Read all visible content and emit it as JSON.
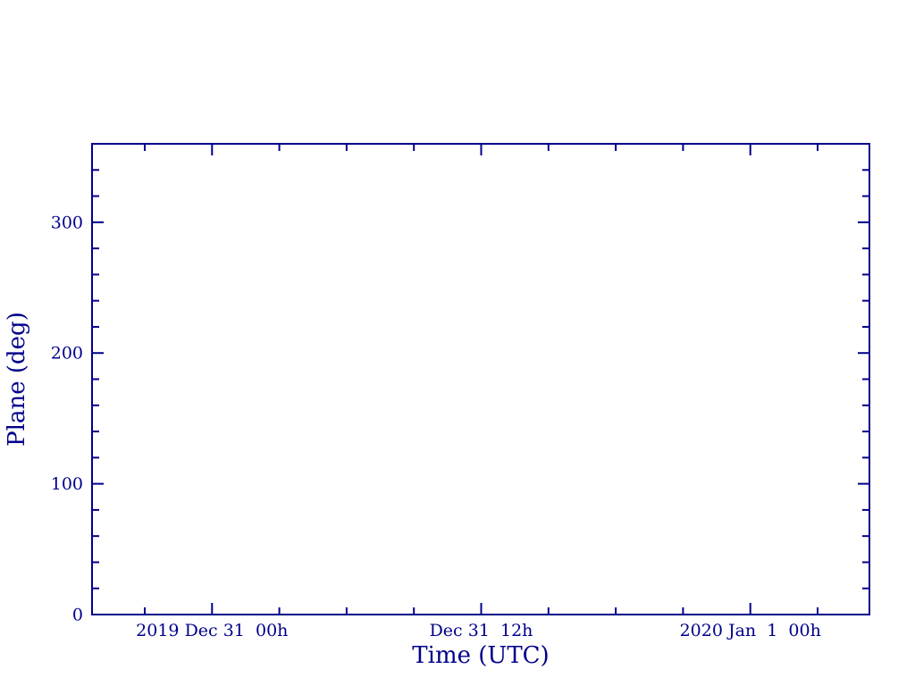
{
  "page": {
    "background_color": "#ffffff",
    "accent_color": "#00008B"
  },
  "chart_data": {
    "type": "line",
    "title": "",
    "xlabel": "Time (UTC)",
    "ylabel": "Plane (deg)",
    "axis_color": "#00008B",
    "background_color": "#ffffff",
    "grid": false,
    "legend": null,
    "series": [],
    "content_note": "empty axes frame, no data points plotted",
    "x_axis": {
      "tick_unit": "hours relative to first labeled tick",
      "range_hours": [
        -5.35,
        29.31
      ],
      "minor_tick_step_hours": 3,
      "ticks_inward": true,
      "major_ticks": [
        {
          "hours": 0,
          "label": "2019 Dec 31  00h"
        },
        {
          "hours": 12,
          "label": "Dec 31  12h"
        },
        {
          "hours": 24,
          "label": "2020 Jan  1  00h"
        }
      ]
    },
    "y_axis": {
      "range_deg": [
        0,
        360
      ],
      "minor_tick_step_deg": 20,
      "major_tick_step_deg": 100,
      "ticks_inward": true,
      "major_ticks": [
        {
          "value": 0,
          "label": "0"
        },
        {
          "value": 100,
          "label": "100"
        },
        {
          "value": 200,
          "label": "200"
        },
        {
          "value": 300,
          "label": "300"
        }
      ]
    }
  }
}
